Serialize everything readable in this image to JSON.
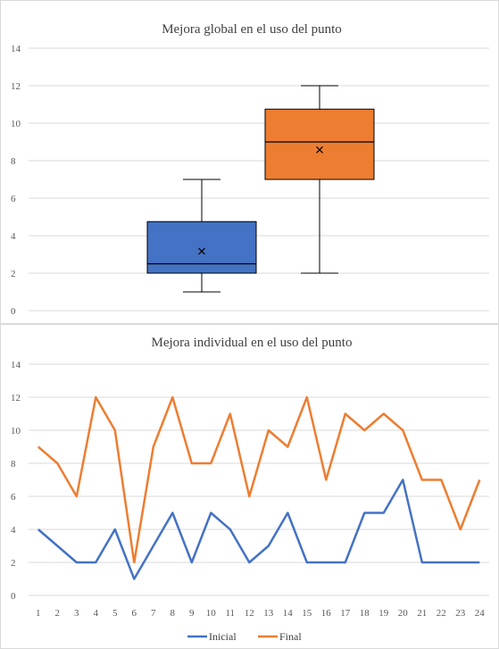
{
  "chart_data": [
    {
      "type": "box",
      "title": "Mejora global en el uso del punto",
      "ylim": [
        0,
        14
      ],
      "yticks": [
        "0",
        "2",
        "4",
        "6",
        "8",
        "10",
        "12",
        "14"
      ],
      "grid": true,
      "series": [
        {
          "name": "Inicial",
          "color": "#4472c4",
          "min": 1,
          "q1": 2,
          "median": 2.5,
          "q3": 4.75,
          "max": 7,
          "mean": 3.17
        },
        {
          "name": "Final",
          "color": "#ed7d31",
          "min": 2,
          "q1": 7,
          "median": 9,
          "q3": 10.75,
          "max": 12,
          "mean": 8.58
        }
      ]
    },
    {
      "type": "line",
      "title": "Mejora individual en el uso del punto",
      "ylim": [
        0,
        14
      ],
      "yticks": [
        "0",
        "2",
        "4",
        "6",
        "8",
        "10",
        "12",
        "14"
      ],
      "grid": true,
      "categories": [
        "1",
        "2",
        "3",
        "4",
        "5",
        "6",
        "7",
        "8",
        "9",
        "10",
        "11",
        "12",
        "13",
        "14",
        "15",
        "16",
        "17",
        "18",
        "19",
        "20",
        "21",
        "22",
        "23",
        "24"
      ],
      "series": [
        {
          "name": "Inicial",
          "color": "#4472c4",
          "values": [
            4,
            3,
            2,
            2,
            4,
            1,
            3,
            5,
            2,
            5,
            4,
            2,
            3,
            5,
            2,
            2,
            2,
            5,
            5,
            7,
            2,
            2,
            2,
            2
          ]
        },
        {
          "name": "Final",
          "color": "#ed7d31",
          "values": [
            9,
            8,
            6,
            12,
            10,
            2,
            9,
            12,
            8,
            8,
            11,
            6,
            10,
            9,
            12,
            7,
            11,
            10,
            11,
            10,
            7,
            7,
            4,
            7
          ]
        }
      ],
      "legend": "bottom"
    }
  ]
}
